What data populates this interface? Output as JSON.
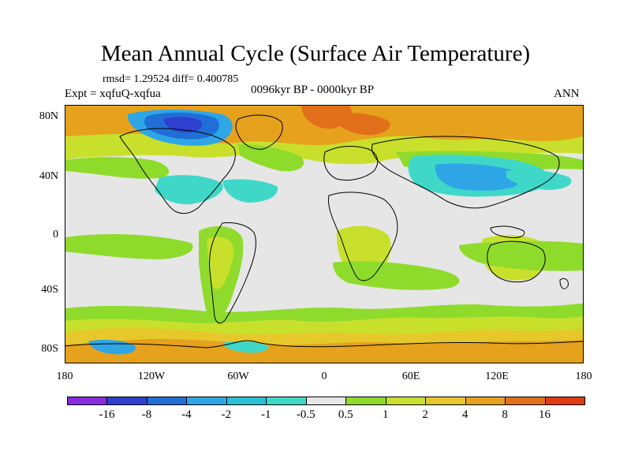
{
  "title": "Mean Annual Cycle (Surface Air Temperature)",
  "stats": "rmsd= 1.29524 diff= 0.400785",
  "experiment": "Expt = xqfuQ-xqfua",
  "period": "0096kyr BP - 0000kyr BP",
  "season": "ANN",
  "y_axis_labels": [
    "80N",
    "40N",
    "0",
    "40S",
    "80S"
  ],
  "x_axis_labels": [
    "180",
    "120W",
    "60W",
    "0",
    "60E",
    "120E",
    "180"
  ],
  "colorbar": {
    "colors": [
      "#8a2be2",
      "#2f3fcf",
      "#1f6fd6",
      "#2ea6e6",
      "#27c1d8",
      "#3fd8c8",
      "#e6e6e6",
      "#8fdb2c",
      "#c8e02c",
      "#e6c82a",
      "#e6a21c",
      "#e2701a",
      "#e03a12"
    ],
    "labels": [
      "-16",
      "-8",
      "-4",
      "-2",
      "-1",
      "-0.5",
      "0.5",
      "1",
      "2",
      "4",
      "8",
      "16"
    ]
  },
  "map_colors": {
    "ocean_neutral": "#e6e6e6",
    "warm_light": "#8fdb2c",
    "warm_mid": "#c8e02c",
    "warm_high": "#e6c82a",
    "warm_strong": "#e6a21c",
    "warm_very": "#e2701a",
    "cool_light": "#3fd8c8",
    "cool_mid": "#2ea6e6",
    "cool_strong": "#1f6fd6",
    "cool_deep": "#2f3fcf"
  }
}
